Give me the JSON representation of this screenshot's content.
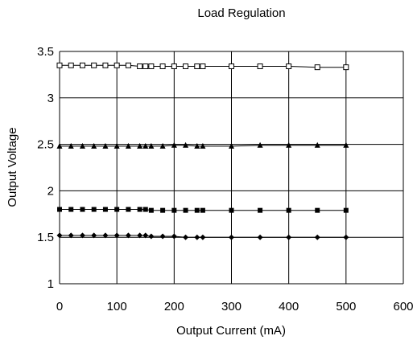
{
  "chart_data": {
    "type": "line",
    "title": "Load Regulation",
    "xlabel": "Output Current (mA)",
    "ylabel": "Output Voltage",
    "xlim": [
      0,
      600
    ],
    "ylim": [
      1,
      3.5
    ],
    "x_ticks": [
      "0",
      "100",
      "200",
      "300",
      "400",
      "500",
      "600"
    ],
    "y_ticks": [
      "1",
      "1.5",
      "2",
      "2.5",
      "3",
      "3.5"
    ],
    "x_tick_values": [
      0,
      100,
      200,
      300,
      400,
      500,
      600
    ],
    "y_tick_values": [
      1,
      1.5,
      2,
      2.5,
      3,
      3.5
    ],
    "grid": "horizontal and vertical",
    "legend": "none",
    "series": [
      {
        "marker": "open-square",
        "color": "#000000",
        "points": [
          [
            0,
            3.35
          ],
          [
            20,
            3.35
          ],
          [
            40,
            3.35
          ],
          [
            60,
            3.35
          ],
          [
            80,
            3.35
          ],
          [
            100,
            3.35
          ],
          [
            120,
            3.35
          ],
          [
            140,
            3.34
          ],
          [
            150,
            3.34
          ],
          [
            160,
            3.34
          ],
          [
            180,
            3.34
          ],
          [
            200,
            3.34
          ],
          [
            220,
            3.34
          ],
          [
            240,
            3.34
          ],
          [
            250,
            3.34
          ],
          [
            300,
            3.34
          ],
          [
            350,
            3.34
          ],
          [
            400,
            3.34
          ],
          [
            450,
            3.33
          ],
          [
            500,
            3.33
          ]
        ]
      },
      {
        "marker": "filled-triangle",
        "color": "#000000",
        "points": [
          [
            0,
            2.48
          ],
          [
            20,
            2.48
          ],
          [
            40,
            2.48
          ],
          [
            60,
            2.48
          ],
          [
            80,
            2.48
          ],
          [
            100,
            2.48
          ],
          [
            120,
            2.48
          ],
          [
            140,
            2.48
          ],
          [
            150,
            2.48
          ],
          [
            160,
            2.48
          ],
          [
            180,
            2.48
          ],
          [
            200,
            2.49
          ],
          [
            220,
            2.49
          ],
          [
            240,
            2.48
          ],
          [
            250,
            2.48
          ],
          [
            300,
            2.48
          ],
          [
            350,
            2.49
          ],
          [
            400,
            2.49
          ],
          [
            450,
            2.49
          ],
          [
            500,
            2.49
          ]
        ]
      },
      {
        "marker": "filled-square",
        "color": "#000000",
        "points": [
          [
            0,
            1.8
          ],
          [
            20,
            1.8
          ],
          [
            40,
            1.8
          ],
          [
            60,
            1.8
          ],
          [
            80,
            1.8
          ],
          [
            100,
            1.8
          ],
          [
            120,
            1.8
          ],
          [
            140,
            1.8
          ],
          [
            150,
            1.8
          ],
          [
            160,
            1.79
          ],
          [
            180,
            1.79
          ],
          [
            200,
            1.79
          ],
          [
            220,
            1.79
          ],
          [
            240,
            1.79
          ],
          [
            250,
            1.79
          ],
          [
            300,
            1.79
          ],
          [
            350,
            1.79
          ],
          [
            400,
            1.79
          ],
          [
            450,
            1.79
          ],
          [
            500,
            1.79
          ]
        ]
      },
      {
        "marker": "filled-diamond",
        "color": "#000000",
        "points": [
          [
            0,
            1.52
          ],
          [
            20,
            1.52
          ],
          [
            40,
            1.52
          ],
          [
            60,
            1.52
          ],
          [
            80,
            1.52
          ],
          [
            100,
            1.52
          ],
          [
            120,
            1.52
          ],
          [
            140,
            1.52
          ],
          [
            150,
            1.52
          ],
          [
            160,
            1.51
          ],
          [
            180,
            1.51
          ],
          [
            200,
            1.51
          ],
          [
            220,
            1.5
          ],
          [
            240,
            1.5
          ],
          [
            250,
            1.5
          ],
          [
            300,
            1.5
          ],
          [
            350,
            1.5
          ],
          [
            400,
            1.5
          ],
          [
            450,
            1.5
          ],
          [
            500,
            1.5
          ]
        ]
      }
    ]
  }
}
